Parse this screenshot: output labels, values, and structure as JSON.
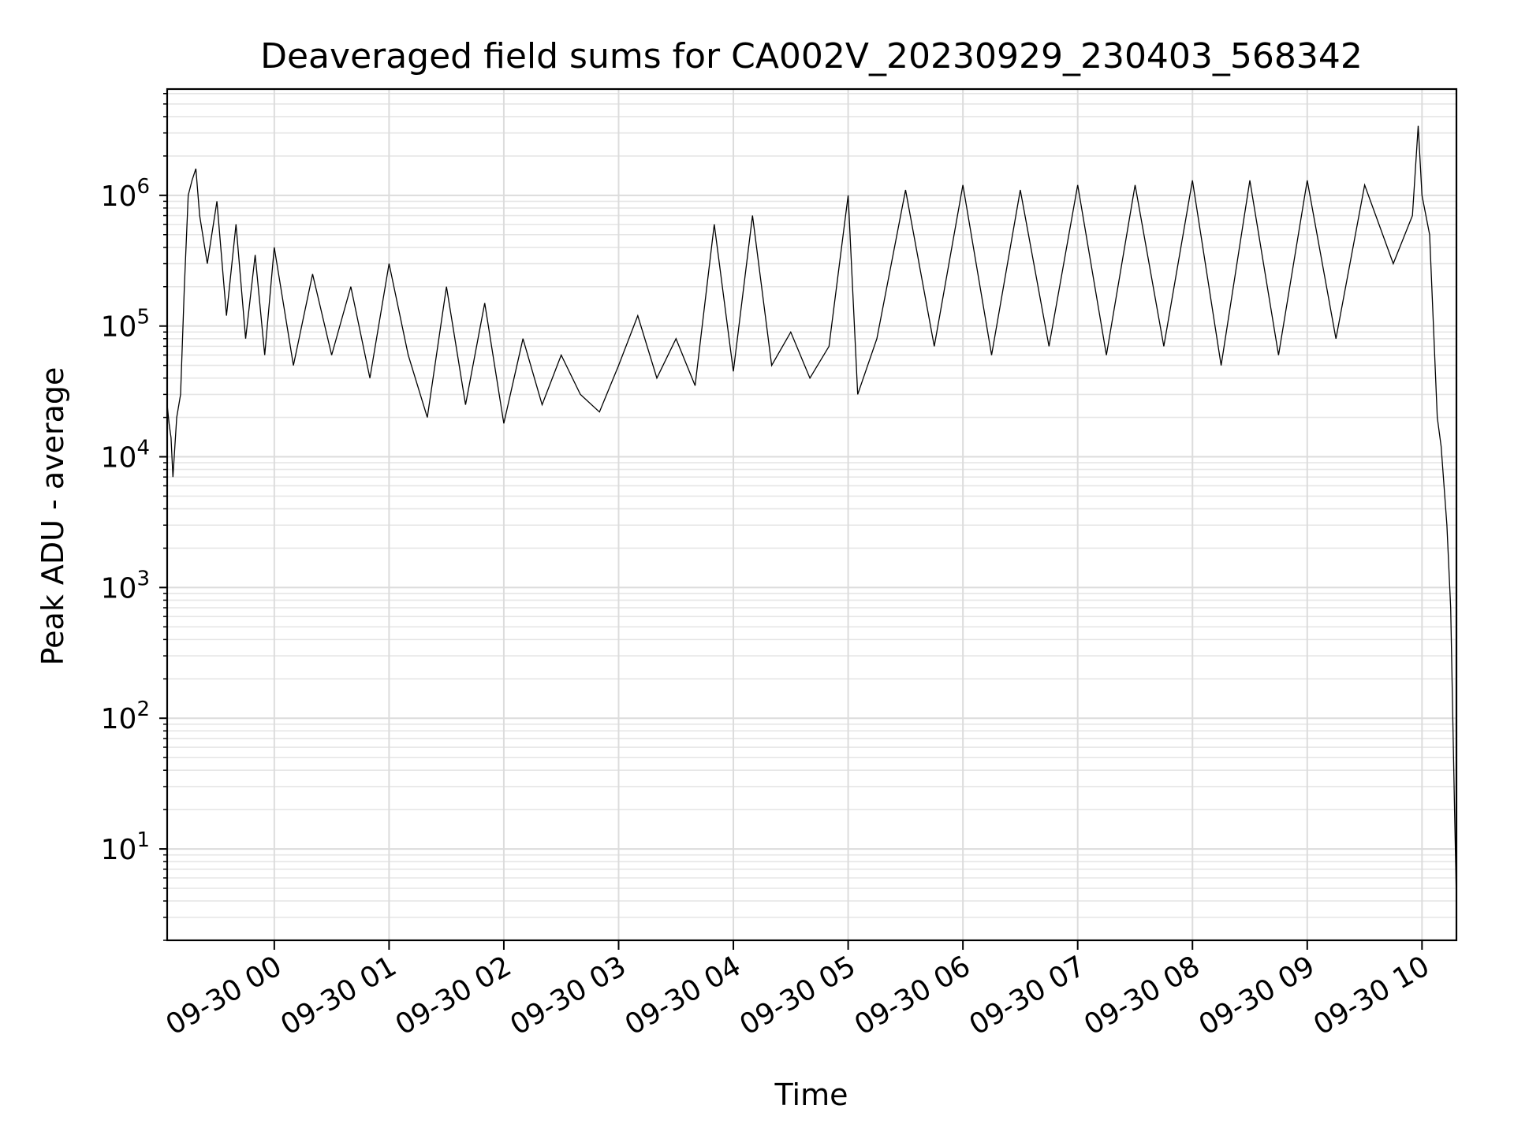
{
  "chart_data": {
    "type": "line",
    "title": "Deaveraged field sums for CA002V_20230929_230403_568342",
    "xlabel": "Time",
    "ylabel": "Peak ADU - average",
    "x_range": [
      "2023-09-29 23:04",
      "2023-09-30 10:18"
    ],
    "y_scale": "log",
    "ylim": [
      2,
      6500000
    ],
    "grid": true,
    "grid_minor": true,
    "line_color": "#000000",
    "x_tick_labels": [
      "09-30 00",
      "09-30 01",
      "09-30 02",
      "09-30 03",
      "09-30 04",
      "09-30 05",
      "09-30 06",
      "09-30 07",
      "09-30 08",
      "09-30 09",
      "09-30 10"
    ],
    "x_tick_values": [
      "2023-09-30 00:00",
      "2023-09-30 01:00",
      "2023-09-30 02:00",
      "2023-09-30 03:00",
      "2023-09-30 04:00",
      "2023-09-30 05:00",
      "2023-09-30 06:00",
      "2023-09-30 07:00",
      "2023-09-30 08:00",
      "2023-09-30 09:00",
      "2023-09-30 10:00"
    ],
    "y_ticks": [
      {
        "value": 10,
        "base": "10",
        "exp": "1"
      },
      {
        "value": 100,
        "base": "10",
        "exp": "2"
      },
      {
        "value": 1000,
        "base": "10",
        "exp": "3"
      },
      {
        "value": 10000,
        "base": "10",
        "exp": "4"
      },
      {
        "value": 100000,
        "base": "10",
        "exp": "5"
      },
      {
        "value": 1000000,
        "base": "10",
        "exp": "6"
      }
    ],
    "series": [
      {
        "values": [
          [
            "2023-09-29 23:04",
            25000
          ],
          [
            "2023-09-29 23:05",
            18000
          ],
          [
            "2023-09-29 23:06",
            14000
          ],
          [
            "2023-09-29 23:07",
            7000
          ],
          [
            "2023-09-29 23:09",
            20000
          ],
          [
            "2023-09-29 23:11",
            30000
          ],
          [
            "2023-09-29 23:13",
            200000
          ],
          [
            "2023-09-29 23:15",
            1000000
          ],
          [
            "2023-09-29 23:17",
            1300000
          ],
          [
            "2023-09-29 23:19",
            1600000
          ],
          [
            "2023-09-29 23:21",
            700000
          ],
          [
            "2023-09-29 23:25",
            300000
          ],
          [
            "2023-09-29 23:30",
            900000
          ],
          [
            "2023-09-29 23:35",
            120000
          ],
          [
            "2023-09-29 23:40",
            600000
          ],
          [
            "2023-09-29 23:45",
            80000
          ],
          [
            "2023-09-29 23:50",
            350000
          ],
          [
            "2023-09-29 23:55",
            60000
          ],
          [
            "2023-09-30 00:00",
            400000
          ],
          [
            "2023-09-30 00:10",
            50000
          ],
          [
            "2023-09-30 00:20",
            250000
          ],
          [
            "2023-09-30 00:30",
            60000
          ],
          [
            "2023-09-30 00:40",
            200000
          ],
          [
            "2023-09-30 00:50",
            40000
          ],
          [
            "2023-09-30 01:00",
            300000
          ],
          [
            "2023-09-30 01:10",
            60000
          ],
          [
            "2023-09-30 01:20",
            20000
          ],
          [
            "2023-09-30 01:30",
            200000
          ],
          [
            "2023-09-30 01:40",
            25000
          ],
          [
            "2023-09-30 01:50",
            150000
          ],
          [
            "2023-09-30 02:00",
            18000
          ],
          [
            "2023-09-30 02:10",
            80000
          ],
          [
            "2023-09-30 02:20",
            25000
          ],
          [
            "2023-09-30 02:30",
            60000
          ],
          [
            "2023-09-30 02:40",
            30000
          ],
          [
            "2023-09-30 02:50",
            22000
          ],
          [
            "2023-09-30 03:00",
            50000
          ],
          [
            "2023-09-30 03:10",
            120000
          ],
          [
            "2023-09-30 03:20",
            40000
          ],
          [
            "2023-09-30 03:30",
            80000
          ],
          [
            "2023-09-30 03:40",
            35000
          ],
          [
            "2023-09-30 03:50",
            600000
          ],
          [
            "2023-09-30 04:00",
            45000
          ],
          [
            "2023-09-30 04:10",
            700000
          ],
          [
            "2023-09-30 04:20",
            50000
          ],
          [
            "2023-09-30 04:30",
            90000
          ],
          [
            "2023-09-30 04:40",
            40000
          ],
          [
            "2023-09-30 04:50",
            70000
          ],
          [
            "2023-09-30 05:00",
            1000000
          ],
          [
            "2023-09-30 05:05",
            30000
          ],
          [
            "2023-09-30 05:15",
            80000
          ],
          [
            "2023-09-30 05:30",
            1100000
          ],
          [
            "2023-09-30 05:45",
            70000
          ],
          [
            "2023-09-30 06:00",
            1200000
          ],
          [
            "2023-09-30 06:15",
            60000
          ],
          [
            "2023-09-30 06:30",
            1100000
          ],
          [
            "2023-09-30 06:45",
            70000
          ],
          [
            "2023-09-30 07:00",
            1200000
          ],
          [
            "2023-09-30 07:15",
            60000
          ],
          [
            "2023-09-30 07:30",
            1200000
          ],
          [
            "2023-09-30 07:45",
            70000
          ],
          [
            "2023-09-30 08:00",
            1300000
          ],
          [
            "2023-09-30 08:15",
            50000
          ],
          [
            "2023-09-30 08:30",
            1300000
          ],
          [
            "2023-09-30 08:45",
            60000
          ],
          [
            "2023-09-30 09:00",
            1300000
          ],
          [
            "2023-09-30 09:15",
            80000
          ],
          [
            "2023-09-30 09:30",
            1200000
          ],
          [
            "2023-09-30 09:45",
            300000
          ],
          [
            "2023-09-30 09:55",
            700000
          ],
          [
            "2023-09-30 09:58",
            3400000
          ],
          [
            "2023-09-30 10:00",
            1000000
          ],
          [
            "2023-09-30 10:04",
            500000
          ],
          [
            "2023-09-30 10:08",
            20000
          ],
          [
            "2023-09-30 10:10",
            12000
          ],
          [
            "2023-09-30 10:13",
            3000
          ],
          [
            "2023-09-30 10:15",
            700
          ],
          [
            "2023-09-30 10:17",
            20
          ],
          [
            "2023-09-30 10:18",
            4
          ]
        ]
      }
    ]
  }
}
